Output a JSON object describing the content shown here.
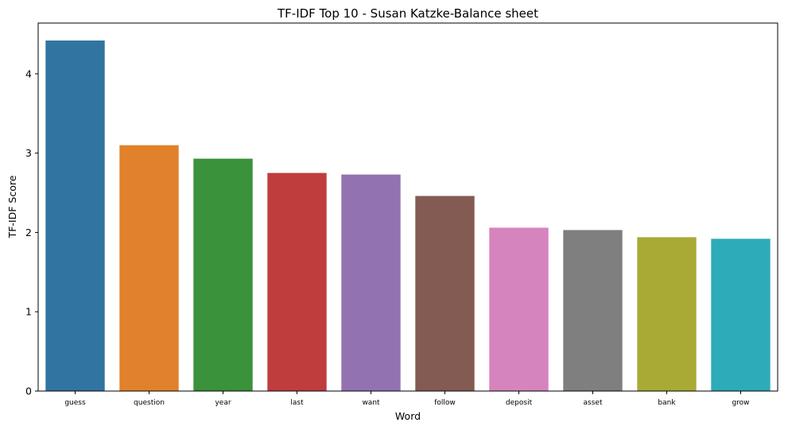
{
  "chart_data": {
    "type": "bar",
    "title": "TF-IDF Top 10 - Susan Katzke-Balance sheet",
    "xlabel": "Word",
    "ylabel": "TF-IDF Score",
    "categories": [
      "guess",
      "question",
      "year",
      "last",
      "want",
      "follow",
      "deposit",
      "asset",
      "bank",
      "grow"
    ],
    "values": [
      4.42,
      3.1,
      2.93,
      2.75,
      2.73,
      2.46,
      2.06,
      2.03,
      1.94,
      1.92
    ],
    "colors": [
      "#3274a1",
      "#e1812c",
      "#3a923a",
      "#c03d3e",
      "#9372b2",
      "#845b53",
      "#d684bd",
      "#7f7f7f",
      "#a9aa35",
      "#2eabb8"
    ],
    "yticks": [
      0,
      1,
      2,
      3,
      4
    ],
    "ylim": [
      0,
      4.64
    ],
    "grid": false,
    "legend": "none"
  }
}
